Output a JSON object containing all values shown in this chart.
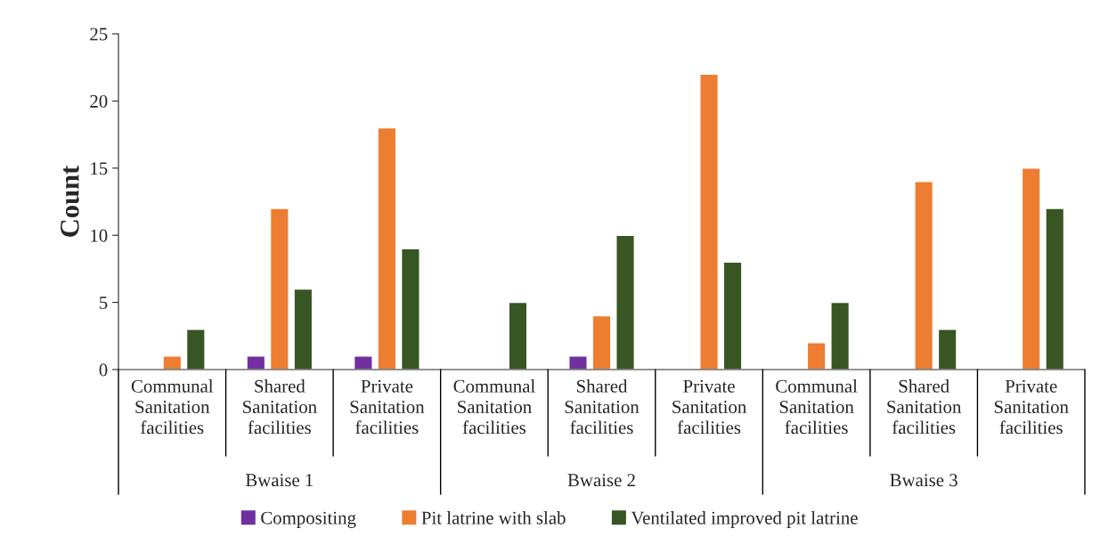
{
  "chart_data": {
    "type": "bar",
    "categories": [
      "Communal\nSanitation\nfacilities",
      "Shared\nSanitation\nfacilities",
      "Private\nSanitation\nfacilities",
      "Communal\nSanitation\nfacilities",
      "Shared\nSanitation\nfacilities",
      "Private\nSanitation\nfacilities",
      "Communal\nSanitation\nfacilities",
      "Shared\nSanitation\nfacilities",
      "Private\nSanitation\nfacilities"
    ],
    "series": [
      {
        "name": "Compositing",
        "color": "#7030a0",
        "values": [
          null,
          1,
          1,
          null,
          1,
          null,
          null,
          null,
          null
        ]
      },
      {
        "name": "Pit latrine with slab",
        "color": "#ed7d31",
        "values": [
          1,
          12,
          18,
          null,
          4,
          22,
          2,
          14,
          15
        ]
      },
      {
        "name": "Ventilated improved pit latrine",
        "color": "#375623",
        "values": [
          3,
          6,
          9,
          5,
          10,
          8,
          5,
          3,
          12
        ]
      }
    ],
    "annotations": [
      "Bwaise 1",
      "Bwaise 2",
      "Bwaise 3"
    ],
    "ylabel": "Count",
    "ylim": [
      0,
      25
    ],
    "yticks": [
      0,
      5,
      10,
      15,
      20,
      25
    ],
    "grid": false,
    "legend": "bottom"
  }
}
